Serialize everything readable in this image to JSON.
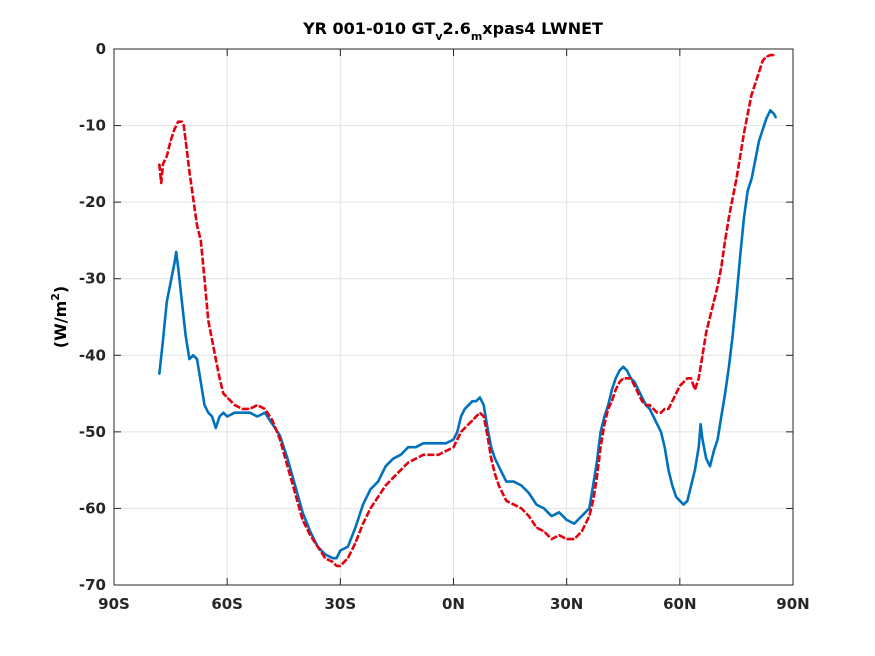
{
  "chart_data": {
    "type": "line",
    "title": {
      "prefix": "YR 001-010 GT",
      "sub1": "v",
      "mid": "2.6",
      "sub2": "m",
      "suffix": "xpas4 LWNET"
    },
    "ylabel": {
      "main": "(W/m",
      "sup": "2",
      "close": ")"
    },
    "xlabel": "",
    "xlim": [
      -90,
      90
    ],
    "ylim": [
      -70,
      0
    ],
    "x_ticks": [
      {
        "value": -90,
        "label": "90S"
      },
      {
        "value": -60,
        "label": "60S"
      },
      {
        "value": -30,
        "label": "30S"
      },
      {
        "value": 0,
        "label": "0N"
      },
      {
        "value": 30,
        "label": "30N"
      },
      {
        "value": 60,
        "label": "60N"
      },
      {
        "value": 90,
        "label": "90N"
      }
    ],
    "y_ticks": [
      0,
      -10,
      -20,
      -30,
      -40,
      -50,
      -60,
      -70
    ],
    "grid": true,
    "series": [
      {
        "color": "#0072bd",
        "dash": "solid",
        "points": [
          [
            -78,
            -42.5
          ],
          [
            -77,
            -38
          ],
          [
            -76,
            -33
          ],
          [
            -75,
            -30.5
          ],
          [
            -74,
            -28
          ],
          [
            -73.5,
            -26.5
          ],
          [
            -73,
            -28.5
          ],
          [
            -72,
            -33
          ],
          [
            -71,
            -37.5
          ],
          [
            -70,
            -40.5
          ],
          [
            -69,
            -40
          ],
          [
            -68,
            -40.5
          ],
          [
            -67,
            -43.5
          ],
          [
            -66,
            -46.5
          ],
          [
            -65,
            -47.5
          ],
          [
            -64,
            -48
          ],
          [
            -63,
            -49.5
          ],
          [
            -62,
            -48
          ],
          [
            -61,
            -47.5
          ],
          [
            -60,
            -48
          ],
          [
            -58,
            -47.5
          ],
          [
            -56,
            -47.5
          ],
          [
            -54,
            -47.5
          ],
          [
            -52,
            -48
          ],
          [
            -50,
            -47.5
          ],
          [
            -48,
            -49
          ],
          [
            -46,
            -50.5
          ],
          [
            -44,
            -53.5
          ],
          [
            -42,
            -57
          ],
          [
            -40,
            -60.5
          ],
          [
            -38,
            -63
          ],
          [
            -36,
            -65
          ],
          [
            -34,
            -66
          ],
          [
            -32,
            -66.5
          ],
          [
            -31,
            -66.5
          ],
          [
            -30,
            -65.5
          ],
          [
            -28,
            -65
          ],
          [
            -26,
            -62.5
          ],
          [
            -24,
            -59.5
          ],
          [
            -22,
            -57.5
          ],
          [
            -20,
            -56.5
          ],
          [
            -18,
            -54.5
          ],
          [
            -16,
            -53.5
          ],
          [
            -14,
            -53
          ],
          [
            -12,
            -52
          ],
          [
            -10,
            -52
          ],
          [
            -8,
            -51.5
          ],
          [
            -6,
            -51.5
          ],
          [
            -4,
            -51.5
          ],
          [
            -2,
            -51.5
          ],
          [
            0,
            -51
          ],
          [
            1,
            -50
          ],
          [
            2,
            -48
          ],
          [
            3,
            -47
          ],
          [
            4,
            -46.5
          ],
          [
            5,
            -46
          ],
          [
            6,
            -46
          ],
          [
            7,
            -45.5
          ],
          [
            8,
            -46.5
          ],
          [
            9,
            -49.5
          ],
          [
            10,
            -52
          ],
          [
            11,
            -53.5
          ],
          [
            12,
            -54.5
          ],
          [
            13,
            -55.5
          ],
          [
            14,
            -56.5
          ],
          [
            16,
            -56.5
          ],
          [
            18,
            -57
          ],
          [
            20,
            -58
          ],
          [
            22,
            -59.5
          ],
          [
            24,
            -60
          ],
          [
            26,
            -61
          ],
          [
            28,
            -60.5
          ],
          [
            30,
            -61.5
          ],
          [
            32,
            -62
          ],
          [
            34,
            -61
          ],
          [
            36,
            -60
          ],
          [
            37,
            -57
          ],
          [
            38,
            -54
          ],
          [
            39,
            -50
          ],
          [
            40,
            -48
          ],
          [
            41,
            -46.5
          ],
          [
            42,
            -44.5
          ],
          [
            43,
            -43
          ],
          [
            44,
            -42
          ],
          [
            45,
            -41.5
          ],
          [
            46,
            -42
          ],
          [
            47,
            -43
          ],
          [
            48,
            -43.5
          ],
          [
            49,
            -44.5
          ],
          [
            50,
            -45.5
          ],
          [
            51,
            -46.5
          ],
          [
            52,
            -47
          ],
          [
            53,
            -48
          ],
          [
            54,
            -49
          ],
          [
            55,
            -50
          ],
          [
            56,
            -52
          ],
          [
            57,
            -55
          ],
          [
            58,
            -57
          ],
          [
            59,
            -58.5
          ],
          [
            60,
            -59
          ],
          [
            61,
            -59.5
          ],
          [
            62,
            -59
          ],
          [
            63,
            -57
          ],
          [
            64,
            -55
          ],
          [
            65,
            -52
          ],
          [
            65.5,
            -49
          ],
          [
            66,
            -51
          ],
          [
            67,
            -53.5
          ],
          [
            68,
            -54.5
          ],
          [
            69,
            -52.5
          ],
          [
            70,
            -51
          ],
          [
            71,
            -48
          ],
          [
            72,
            -45
          ],
          [
            73,
            -41.5
          ],
          [
            74,
            -37.5
          ],
          [
            75,
            -32.5
          ],
          [
            76,
            -27
          ],
          [
            77,
            -22
          ],
          [
            78,
            -18.5
          ],
          [
            79,
            -17
          ],
          [
            80,
            -14.5
          ],
          [
            81,
            -12
          ],
          [
            82,
            -10.5
          ],
          [
            83,
            -9
          ],
          [
            84,
            -8
          ],
          [
            85,
            -8.5
          ],
          [
            85.5,
            -9
          ]
        ]
      },
      {
        "color": "#e3000f",
        "dash": "dashed",
        "points": [
          [
            -78,
            -15
          ],
          [
            -77.5,
            -17.5
          ],
          [
            -77,
            -15
          ],
          [
            -76,
            -14
          ],
          [
            -75,
            -12
          ],
          [
            -74,
            -10.5
          ],
          [
            -73,
            -9.5
          ],
          [
            -72,
            -9.5
          ],
          [
            -71.5,
            -10
          ],
          [
            -71,
            -12
          ],
          [
            -70,
            -16
          ],
          [
            -69,
            -19.5
          ],
          [
            -68,
            -23
          ],
          [
            -67,
            -25
          ],
          [
            -66,
            -30
          ],
          [
            -65,
            -35.5
          ],
          [
            -64,
            -38
          ],
          [
            -63,
            -40.5
          ],
          [
            -62,
            -43
          ],
          [
            -61,
            -45
          ],
          [
            -60,
            -45.5
          ],
          [
            -59,
            -46
          ],
          [
            -58,
            -46.5
          ],
          [
            -56,
            -47
          ],
          [
            -54,
            -47
          ],
          [
            -52,
            -46.5
          ],
          [
            -50,
            -47
          ],
          [
            -48,
            -48.5
          ],
          [
            -46,
            -51
          ],
          [
            -44,
            -54.5
          ],
          [
            -42,
            -58
          ],
          [
            -40,
            -61.5
          ],
          [
            -38,
            -63.5
          ],
          [
            -36,
            -65
          ],
          [
            -34,
            -66.5
          ],
          [
            -32,
            -67
          ],
          [
            -31,
            -67.5
          ],
          [
            -30,
            -67.5
          ],
          [
            -28,
            -66.5
          ],
          [
            -26,
            -64.5
          ],
          [
            -24,
            -62
          ],
          [
            -22,
            -60
          ],
          [
            -20,
            -58.5
          ],
          [
            -18,
            -57
          ],
          [
            -16,
            -56
          ],
          [
            -14,
            -55
          ],
          [
            -12,
            -54
          ],
          [
            -10,
            -53.5
          ],
          [
            -8,
            -53
          ],
          [
            -6,
            -53
          ],
          [
            -4,
            -53
          ],
          [
            -2,
            -52.5
          ],
          [
            0,
            -52
          ],
          [
            1,
            -51
          ],
          [
            2,
            -50
          ],
          [
            3,
            -49.5
          ],
          [
            4,
            -49
          ],
          [
            5,
            -48.5
          ],
          [
            6,
            -48
          ],
          [
            7,
            -47.5
          ],
          [
            8,
            -48
          ],
          [
            9,
            -50.5
          ],
          [
            10,
            -53.5
          ],
          [
            11,
            -55.5
          ],
          [
            12,
            -57
          ],
          [
            13,
            -58
          ],
          [
            14,
            -59
          ],
          [
            16,
            -59.5
          ],
          [
            18,
            -60
          ],
          [
            20,
            -61
          ],
          [
            22,
            -62.5
          ],
          [
            24,
            -63
          ],
          [
            26,
            -64
          ],
          [
            28,
            -63.5
          ],
          [
            30,
            -64
          ],
          [
            32,
            -64
          ],
          [
            34,
            -63
          ],
          [
            36,
            -61
          ],
          [
            37,
            -59
          ],
          [
            38,
            -56
          ],
          [
            39,
            -52
          ],
          [
            40,
            -49
          ],
          [
            41,
            -47
          ],
          [
            42,
            -46
          ],
          [
            43,
            -44.5
          ],
          [
            44,
            -43.5
          ],
          [
            45,
            -43
          ],
          [
            46,
            -43
          ],
          [
            47,
            -43
          ],
          [
            48,
            -44
          ],
          [
            49,
            -45
          ],
          [
            50,
            -46
          ],
          [
            51,
            -46.5
          ],
          [
            52,
            -46.5
          ],
          [
            53,
            -47
          ],
          [
            54,
            -47.5
          ],
          [
            55,
            -47.5
          ],
          [
            56,
            -47
          ],
          [
            57,
            -47
          ],
          [
            58,
            -46
          ],
          [
            59,
            -45
          ],
          [
            60,
            -44
          ],
          [
            61,
            -43.5
          ],
          [
            62,
            -43
          ],
          [
            63,
            -43
          ],
          [
            64,
            -44.5
          ],
          [
            65,
            -43
          ],
          [
            66,
            -40
          ],
          [
            67,
            -37
          ],
          [
            68,
            -35
          ],
          [
            69,
            -33
          ],
          [
            70,
            -31
          ],
          [
            71,
            -28.5
          ],
          [
            72,
            -25
          ],
          [
            73,
            -22
          ],
          [
            74,
            -19.5
          ],
          [
            75,
            -17
          ],
          [
            76,
            -14
          ],
          [
            77,
            -11
          ],
          [
            78,
            -8.5
          ],
          [
            79,
            -6
          ],
          [
            80,
            -4.5
          ],
          [
            81,
            -3
          ],
          [
            82,
            -1.5
          ],
          [
            83,
            -1
          ],
          [
            84,
            -0.8
          ],
          [
            85,
            -0.8
          ]
        ]
      }
    ]
  }
}
